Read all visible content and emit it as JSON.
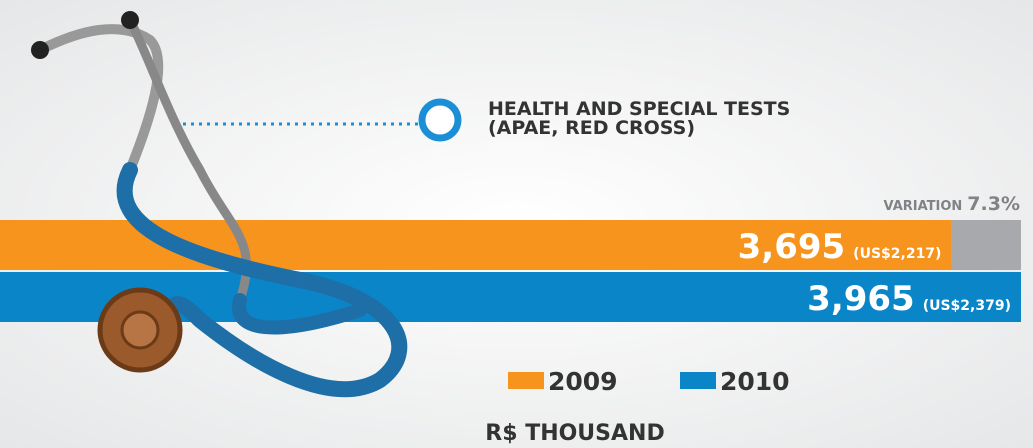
{
  "chart_data": {
    "type": "hbar",
    "title": "HEALTH AND SPECIAL TESTS (APAE, RED CROSS)",
    "series": [
      {
        "name": "2009",
        "color": "#f7941d",
        "values": [
          3695
        ],
        "value_labels": [
          "3,695"
        ],
        "usd_values": [
          2217
        ],
        "usd_labels": [
          "(US$2,217)"
        ]
      },
      {
        "name": "2010",
        "color": "#0a86c8",
        "values": [
          3965
        ],
        "value_labels": [
          "3,965"
        ],
        "usd_values": [
          2379
        ],
        "usd_labels": [
          "(US$2,379)"
        ]
      }
    ],
    "variation_label": "VARIATION",
    "variation": 7.3,
    "variation_text": "7.3%",
    "unit": "R$ THOUSAND",
    "xlim": [
      0,
      4000
    ]
  }
}
